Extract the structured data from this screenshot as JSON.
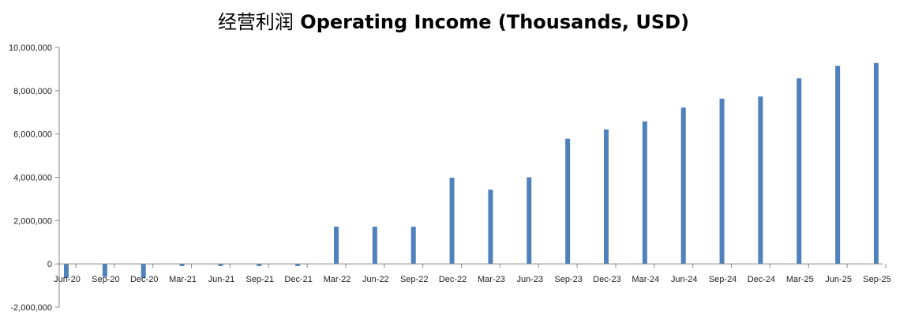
{
  "chart_data": {
    "type": "bar",
    "title_cn": "经营利润",
    "title_en": "Operating Income (Thousands, USD)",
    "xlabel": "",
    "ylabel": "",
    "ylim": [
      -2000000,
      10000000
    ],
    "yticks": [
      -2000000,
      0,
      2000000,
      4000000,
      6000000,
      8000000,
      10000000
    ],
    "ytick_labels": [
      "-2,000,000",
      "0",
      "2,000,000",
      "4,000,000",
      "6,000,000",
      "8,000,000",
      "10,000,000"
    ],
    "tick_labels": [
      "Jun-20",
      "Sep-20",
      "Dec-20",
      "Mar-21",
      "Jun-21",
      "Sep-21",
      "Dec-21",
      "Mar-22",
      "Jun-22",
      "Sep-22",
      "Dec-22",
      "Mar-23",
      "Jun-23",
      "Sep-23",
      "Dec-23",
      "Mar-24",
      "Jun-24",
      "Sep-24",
      "Dec-24",
      "Mar-25",
      "Jun-25",
      "Sep-25"
    ],
    "x_start": "2020-06",
    "x_end": "2025-09",
    "bars": [
      {
        "x": "2020-06",
        "value": -650000
      },
      {
        "x": "2020-09",
        "value": -600000
      },
      {
        "x": "2020-12",
        "value": -650000
      },
      {
        "x": "2021-03",
        "value": -100000
      },
      {
        "x": "2021-06",
        "value": -100000
      },
      {
        "x": "2021-09",
        "value": -100000
      },
      {
        "x": "2021-12",
        "value": -100000
      },
      {
        "x": "2022-03",
        "value": 1720000
      },
      {
        "x": "2022-06",
        "value": 1720000
      },
      {
        "x": "2022-09",
        "value": 1720000
      },
      {
        "x": "2022-12",
        "value": 3980000
      },
      {
        "x": "2023-03",
        "value": 3430000
      },
      {
        "x": "2023-06",
        "value": 4000000
      },
      {
        "x": "2023-09",
        "value": 5780000
      },
      {
        "x": "2023-12",
        "value": 6210000
      },
      {
        "x": "2024-03",
        "value": 6580000
      },
      {
        "x": "2024-06",
        "value": 7220000
      },
      {
        "x": "2024-09",
        "value": 7630000
      },
      {
        "x": "2024-12",
        "value": 7730000
      },
      {
        "x": "2025-03",
        "value": 8570000
      },
      {
        "x": "2025-06",
        "value": 9150000
      },
      {
        "x": "2025-09",
        "value": 9280000
      }
    ],
    "bar_color": "#4F81BD",
    "grid": false,
    "legend": "none"
  }
}
